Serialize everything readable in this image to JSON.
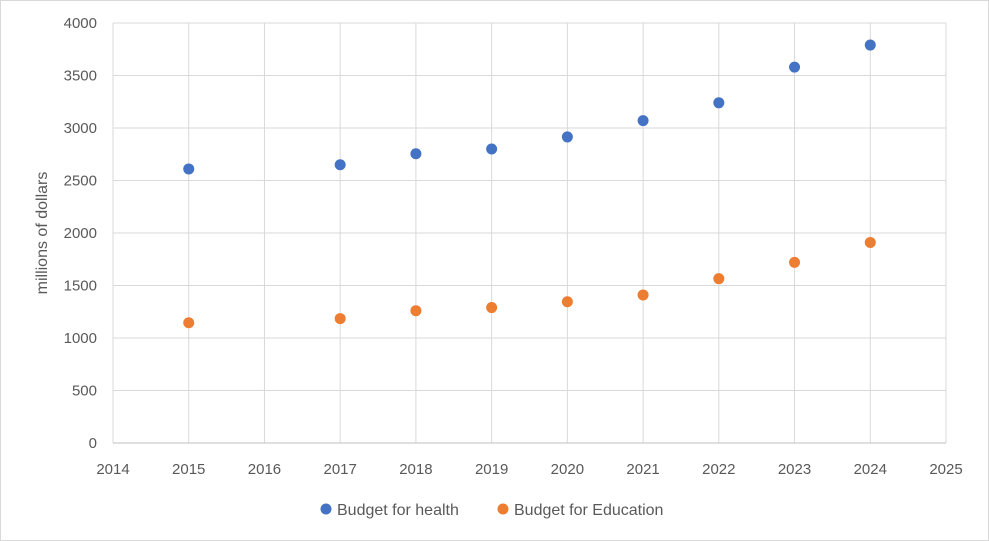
{
  "chart_data": {
    "type": "scatter",
    "title": "",
    "xlabel": "",
    "ylabel": "millions of dollars",
    "xlim": [
      2014,
      2025
    ],
    "ylim": [
      0,
      4000
    ],
    "x_ticks": [
      2014,
      2015,
      2016,
      2017,
      2018,
      2019,
      2020,
      2021,
      2022,
      2023,
      2024,
      2025
    ],
    "y_ticks": [
      0,
      500,
      1000,
      1500,
      2000,
      2500,
      3000,
      3500,
      4000
    ],
    "grid": true,
    "legend_position": "bottom",
    "series": [
      {
        "name": "Budget for health",
        "color": "#4472c4",
        "x": [
          2015,
          2017,
          2018,
          2019,
          2020,
          2021,
          2022,
          2023,
          2024
        ],
        "y": [
          2610,
          2650,
          2755,
          2800,
          2915,
          3070,
          3240,
          3580,
          3790
        ]
      },
      {
        "name": "Budget for Education",
        "color": "#ed7d31",
        "x": [
          2015,
          2017,
          2018,
          2019,
          2020,
          2021,
          2022,
          2023,
          2024
        ],
        "y": [
          1145,
          1185,
          1260,
          1290,
          1345,
          1410,
          1565,
          1720,
          1910
        ]
      }
    ]
  }
}
